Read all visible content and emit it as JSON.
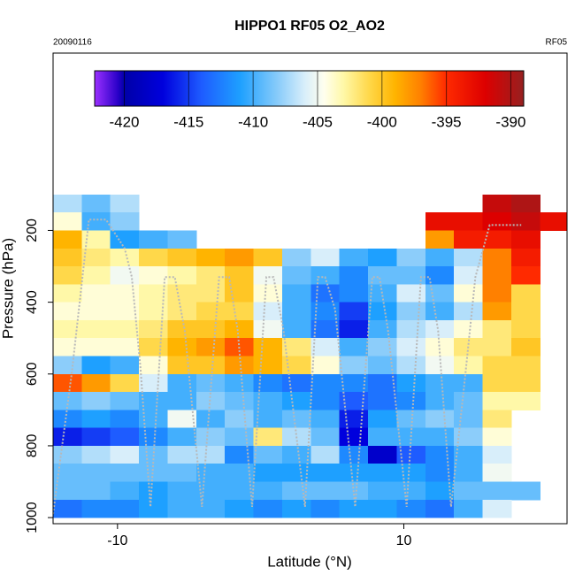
{
  "chart_data": {
    "type": "heatmap",
    "title": "HIPPO1 RF05 O2_AO2",
    "subtitle_left": "20090116",
    "subtitle_right": "RF05",
    "x_label": "Latitude (°N)",
    "y_label": "Pressure (hPa)",
    "xlim": [
      -14.5,
      21.4
    ],
    "xticks": [
      -10,
      10
    ],
    "ylim": [
      1017,
      -294
    ],
    "yticks": [
      200,
      400,
      600,
      800,
      1000
    ],
    "x": [
      -13.5,
      -11.5,
      -9.5,
      -7.5,
      -5.5,
      -3.5,
      -1.5,
      0.5,
      2.5,
      4.5,
      6.5,
      8.5,
      10.5,
      12.5,
      14.5,
      16.5,
      18.5,
      20.5
    ],
    "y": [
      125,
      175,
      225,
      275,
      325,
      375,
      425,
      475,
      525,
      575,
      625,
      675,
      725,
      775,
      825,
      875,
      925,
      975
    ],
    "cell_width": 2,
    "cell_height": 50,
    "z": [
      [
        -407,
        -409,
        -407,
        null,
        null,
        null,
        null,
        null,
        null,
        null,
        null,
        null,
        null,
        null,
        null,
        -391,
        -390,
        null
      ],
      [
        -404,
        -410,
        -408,
        null,
        null,
        null,
        null,
        null,
        null,
        null,
        null,
        null,
        null,
        -393,
        -393,
        -392,
        -391,
        -393
      ],
      [
        -399,
        -403,
        -411,
        -410,
        -409,
        null,
        null,
        null,
        null,
        null,
        null,
        null,
        null,
        -398,
        -394,
        -394,
        -393,
        null
      ],
      [
        -400,
        -402,
        -403,
        -401,
        -400,
        -399,
        -398,
        -400,
        -408,
        -406,
        -410,
        -411,
        -408,
        -410,
        -407,
        -397,
        -394,
        null
      ],
      [
        -401,
        -403,
        -405,
        -404,
        -403,
        -402,
        -400,
        -405,
        -409,
        -410,
        -412,
        -409,
        -409,
        -412,
        -406,
        -397,
        -395,
        null
      ],
      [
        -403,
        -404,
        -404,
        -403,
        -402,
        -402,
        -400,
        -404,
        -410,
        -413,
        -412,
        -410,
        -406,
        -409,
        -404,
        -397,
        -401,
        null
      ],
      [
        -404,
        -404,
        -404,
        -403,
        -402,
        -401,
        -401,
        -406,
        -410,
        -412,
        -415,
        -411,
        -408,
        -410,
        -407,
        -398,
        -401,
        null
      ],
      [
        -403,
        -403,
        -403,
        -402,
        -400,
        -400,
        -399,
        -405,
        -410,
        -413,
        -416,
        -410,
        -407,
        -406,
        -404,
        -402,
        -401,
        null
      ],
      [
        -404,
        -404,
        -404,
        -401,
        -399,
        -398,
        -396,
        -399,
        -402,
        -406,
        -410,
        -408,
        -406,
        -404,
        -402,
        -402,
        -400,
        null
      ],
      [
        -408,
        -411,
        -410,
        -404,
        -400,
        -400,
        -398,
        -399,
        -401,
        -404,
        -408,
        -409,
        -407,
        -405,
        -403,
        -401,
        -401,
        null
      ],
      [
        -396,
        -398,
        -401,
        -406,
        -410,
        -409,
        -410,
        -412,
        -413,
        -412,
        -412,
        -413,
        -411,
        -410,
        -410,
        -401,
        -401,
        null
      ],
      [
        -409,
        -408,
        -409,
        -410,
        -410,
        -408,
        -409,
        -410,
        -411,
        -412,
        -414,
        -413,
        -412,
        -410,
        -409,
        -403,
        -403,
        null
      ],
      [
        -412,
        -411,
        -412,
        -410,
        -405,
        -410,
        -408,
        -410,
        -409,
        -410,
        -416,
        -411,
        -409,
        -408,
        -409,
        -402,
        null,
        null
      ],
      [
        -416,
        -415,
        -414,
        -412,
        -410,
        -408,
        -409,
        -402,
        -407,
        -409,
        -417,
        -410,
        -410,
        -410,
        -408,
        -404,
        null,
        null
      ],
      [
        -408,
        -407,
        -406,
        -409,
        -407,
        -407,
        -412,
        -409,
        -410,
        -407,
        -412,
        -418,
        -414,
        -412,
        -410,
        -406,
        null,
        null
      ],
      [
        -409,
        -409,
        -409,
        -409,
        -409,
        -410,
        -410,
        -411,
        -411,
        -411,
        -411,
        -411,
        -411,
        -412,
        -410,
        -405,
        null,
        null
      ],
      [
        -409,
        -409,
        -410,
        -411,
        -410,
        -410,
        -410,
        -410,
        -409,
        -409,
        -409,
        -410,
        -410,
        -411,
        -409,
        -409,
        -409,
        null
      ],
      [
        -413,
        -412,
        -412,
        -411,
        -410,
        -410,
        -411,
        -412,
        -411,
        -412,
        -411,
        -411,
        -412,
        -413,
        -410,
        -406,
        null,
        null
      ]
    ],
    "colorbar": {
      "lim": [
        -422.3,
        -389
      ],
      "ticks": [
        -420,
        -415,
        -410,
        -405,
        -400,
        -395,
        -390
      ],
      "stops": [
        {
          "value": -422.3,
          "color": "#9b30ff"
        },
        {
          "value": -420.5,
          "color": "#2a00c8"
        },
        {
          "value": -420,
          "color": "#0000a8"
        },
        {
          "value": -417,
          "color": "#0000dd"
        },
        {
          "value": -414,
          "color": "#1e5cff"
        },
        {
          "value": -411,
          "color": "#1ea0ff"
        },
        {
          "value": -408,
          "color": "#8ccdfa"
        },
        {
          "value": -406,
          "color": "#d8eefa"
        },
        {
          "value": -404.5,
          "color": "#ffffee"
        },
        {
          "value": -403,
          "color": "#fff8a8"
        },
        {
          "value": -401,
          "color": "#ffd84a"
        },
        {
          "value": -399,
          "color": "#ffb400"
        },
        {
          "value": -397,
          "color": "#ff8000"
        },
        {
          "value": -395,
          "color": "#ff2a00"
        },
        {
          "value": -392,
          "color": "#dd0000"
        },
        {
          "value": -389,
          "color": "#962020"
        }
      ]
    },
    "track": {
      "color": "#b8b8b8",
      "x": [
        -14.5,
        -13.2,
        -12.0,
        -10.8,
        -9.5,
        -9.0,
        -8.4,
        -7.7,
        -6.7,
        -6.0,
        -5.3,
        -4.1,
        -2.9,
        -2.2,
        -1.6,
        -0.6,
        0.4,
        0.9,
        1.6,
        3.1,
        4.0,
        4.5,
        5.2,
        6.6,
        7.8,
        8.3,
        8.9,
        10.2,
        11.2,
        11.8,
        12.4,
        13.3,
        14.3,
        15.0,
        16.0,
        18.2
      ],
      "y": [
        990,
        600,
        170,
        170,
        250,
        330,
        580,
        970,
        330,
        330,
        480,
        970,
        330,
        330,
        480,
        970,
        330,
        330,
        480,
        970,
        330,
        330,
        420,
        970,
        330,
        330,
        480,
        970,
        330,
        330,
        480,
        970,
        600,
        330,
        185,
        185
      ]
    }
  }
}
